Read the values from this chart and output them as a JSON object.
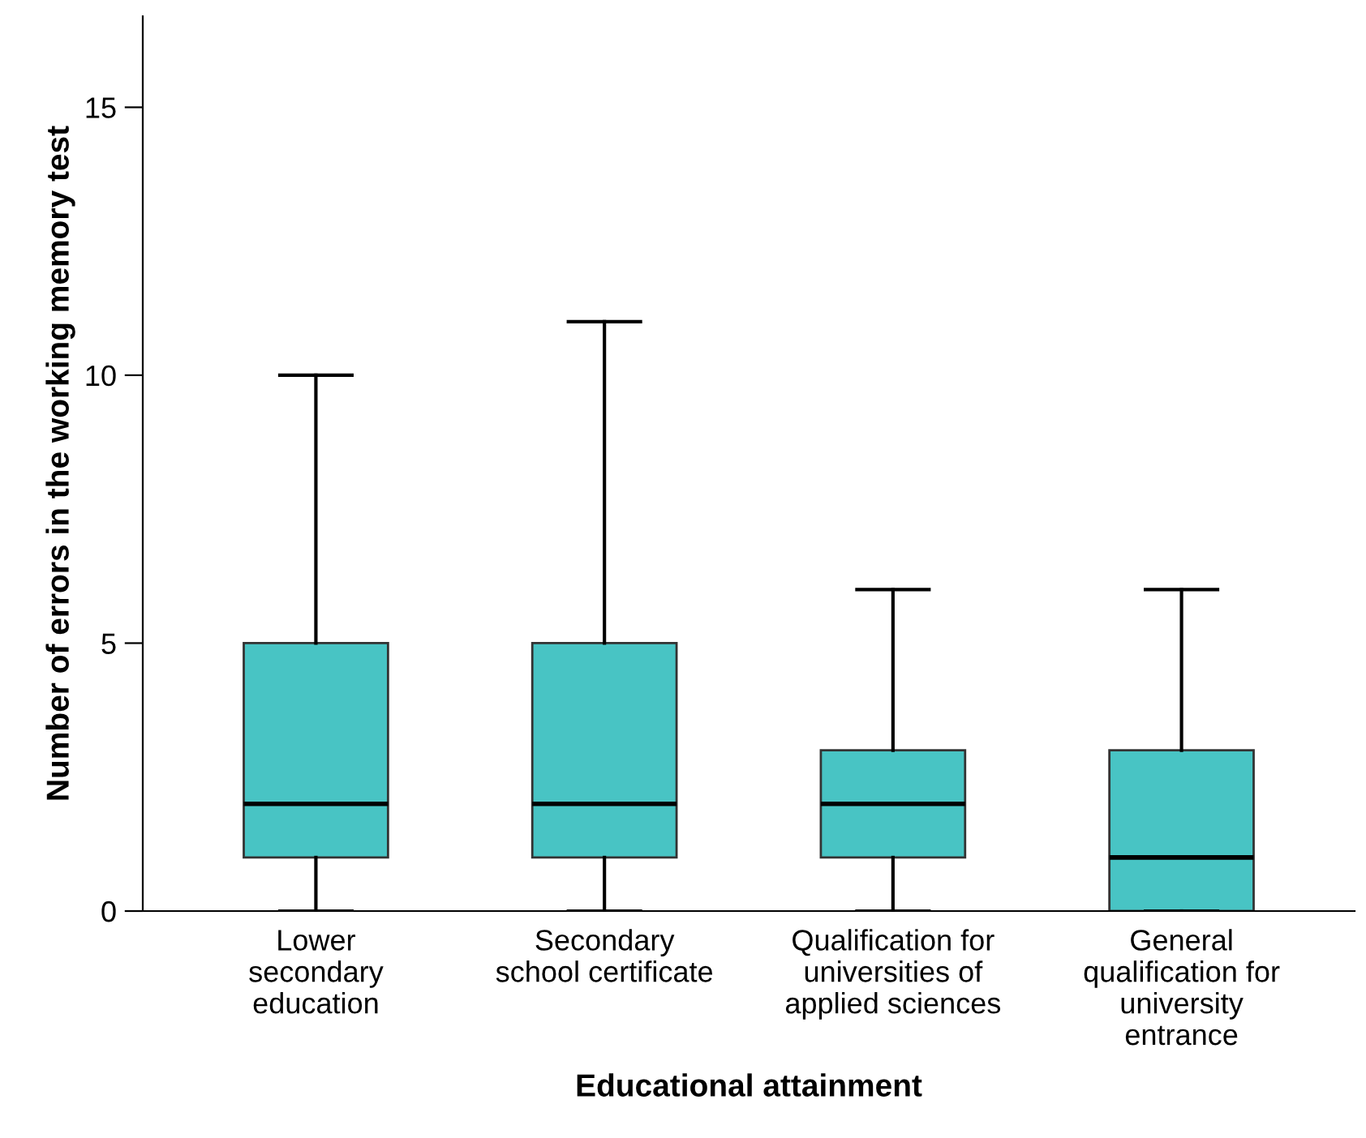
{
  "chart_data": {
    "type": "box",
    "xlabel": "Educational attainment",
    "ylabel": "Number of errors in the working memory test",
    "categories": [
      "Lower\nsecondary\neducation",
      "Secondary\nschool certificate",
      "Qualification for\nuniversities of\napplied sciences",
      "General\nqualification for\nuniversity\nentrance"
    ],
    "boxes": [
      {
        "low": 0,
        "q1": 1,
        "median": 2,
        "q3": 5,
        "high": 10
      },
      {
        "low": 0,
        "q1": 1,
        "median": 2,
        "q3": 5,
        "high": 11
      },
      {
        "low": 0,
        "q1": 1,
        "median": 2,
        "q3": 3,
        "high": 6
      },
      {
        "low": 0,
        "q1": 0,
        "median": 1,
        "q3": 3,
        "high": 6
      }
    ],
    "color": "#48c4c4",
    "ylim": [
      0,
      16.7
    ],
    "yticks": [
      0,
      5,
      10,
      15
    ],
    "grid": false
  }
}
